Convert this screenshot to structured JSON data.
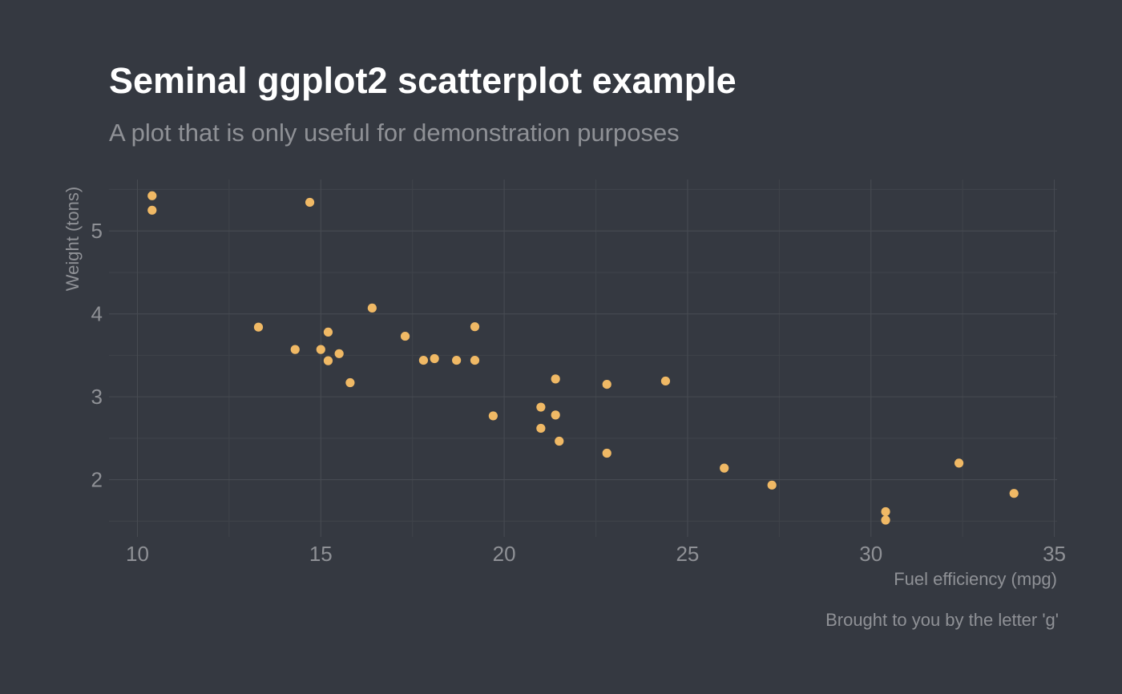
{
  "colors": {
    "background": "#353941",
    "point": "#f0b965",
    "text_primary": "#ffffff",
    "text_secondary": "#8f9196",
    "grid_major": "#474b52",
    "grid_minor": "#3f434a"
  },
  "chart_data": {
    "type": "scatter",
    "title": "Seminal ggplot2 scatterplot example",
    "subtitle": "A plot that is only useful for demonstration purposes",
    "xlabel": "Fuel efficiency (mpg)",
    "ylabel": "Weight (tons)",
    "caption": "Brought to you by the letter 'g'",
    "xlim": [
      9.225,
      35.075
    ],
    "ylim": [
      1.31,
      5.62
    ],
    "x_ticks": [
      10,
      15,
      20,
      25,
      30,
      35
    ],
    "x_tick_labels": [
      "10",
      "15",
      "20",
      "25",
      "30",
      "35"
    ],
    "y_ticks": [
      2,
      3,
      4,
      5
    ],
    "y_tick_labels": [
      "2",
      "3",
      "4",
      "5"
    ],
    "x_minor_ticks": [
      12.5,
      17.5,
      22.5,
      27.5,
      32.5
    ],
    "y_minor_ticks": [
      1.5,
      2.5,
      3.5,
      4.5,
      5.5
    ],
    "grid": true,
    "legend": "none",
    "series": [
      {
        "points": [
          {
            "x": 21.0,
            "y": 2.62
          },
          {
            "x": 21.0,
            "y": 2.875
          },
          {
            "x": 22.8,
            "y": 2.32
          },
          {
            "x": 21.4,
            "y": 3.215
          },
          {
            "x": 18.7,
            "y": 3.44
          },
          {
            "x": 18.1,
            "y": 3.46
          },
          {
            "x": 14.3,
            "y": 3.57
          },
          {
            "x": 24.4,
            "y": 3.19
          },
          {
            "x": 22.8,
            "y": 3.15
          },
          {
            "x": 19.2,
            "y": 3.44
          },
          {
            "x": 17.8,
            "y": 3.44
          },
          {
            "x": 16.4,
            "y": 4.07
          },
          {
            "x": 17.3,
            "y": 3.73
          },
          {
            "x": 15.2,
            "y": 3.78
          },
          {
            "x": 10.4,
            "y": 5.25
          },
          {
            "x": 10.4,
            "y": 5.424
          },
          {
            "x": 14.7,
            "y": 5.345
          },
          {
            "x": 32.4,
            "y": 2.2
          },
          {
            "x": 30.4,
            "y": 1.615
          },
          {
            "x": 33.9,
            "y": 1.835
          },
          {
            "x": 21.5,
            "y": 2.465
          },
          {
            "x": 15.5,
            "y": 3.52
          },
          {
            "x": 15.2,
            "y": 3.435
          },
          {
            "x": 13.3,
            "y": 3.84
          },
          {
            "x": 19.2,
            "y": 3.845
          },
          {
            "x": 27.3,
            "y": 1.935
          },
          {
            "x": 26.0,
            "y": 2.14
          },
          {
            "x": 30.4,
            "y": 1.513
          },
          {
            "x": 15.8,
            "y": 3.17
          },
          {
            "x": 19.7,
            "y": 2.77
          },
          {
            "x": 15.0,
            "y": 3.57
          },
          {
            "x": 21.4,
            "y": 2.78
          }
        ]
      }
    ]
  }
}
